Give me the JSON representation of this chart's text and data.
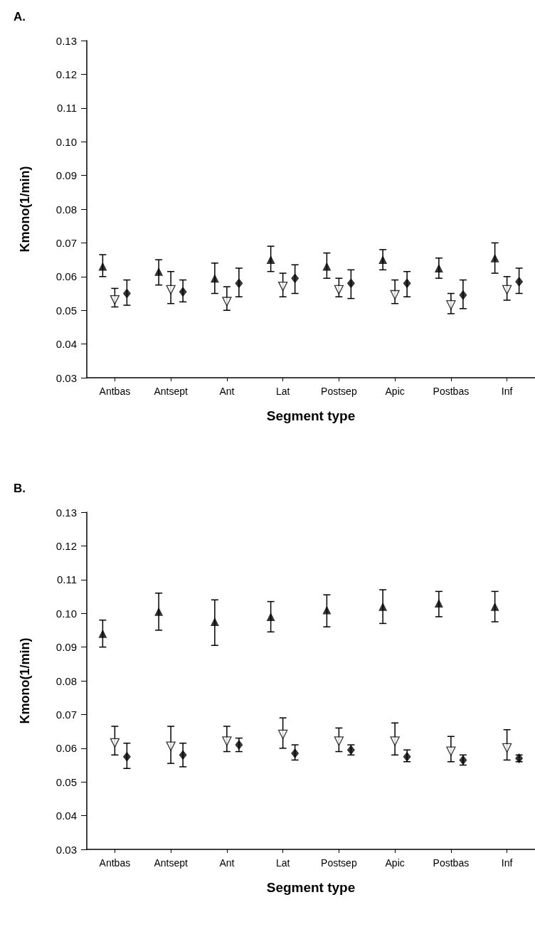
{
  "chart_data": [
    {
      "type": "scatter",
      "title": "A.",
      "xlabel": "Segment type",
      "ylabel": "Kmono(1/min)",
      "categories": [
        "Antbas",
        "Antsept",
        "Ant",
        "Lat",
        "Postsep",
        "Apic",
        "Postbas",
        "Inf"
      ],
      "ylim": [
        0.03,
        0.13
      ],
      "yticks": [
        0.03,
        0.04,
        0.05,
        0.06,
        0.07,
        0.08,
        0.09,
        {
          "value": 0.1,
          "label": "0.10"
        },
        0.11,
        0.12,
        0.13
      ],
      "grid": false,
      "series": [
        {
          "color": "#000000",
          "marker": "triangle",
          "values": [
            0.063,
            0.0615,
            0.0595,
            0.065,
            0.063,
            0.065,
            0.0625,
            0.0655
          ],
          "errors": [
            [
              0.06,
              0.0665
            ],
            [
              0.0575,
              0.065
            ],
            [
              0.055,
              0.064
            ],
            [
              0.0615,
              0.069
            ],
            [
              0.0595,
              0.067
            ],
            [
              0.062,
              0.068
            ],
            [
              0.0595,
              0.0655
            ],
            [
              0.061,
              0.07
            ]
          ]
        },
        {
          "color": "#000000",
          "marker": "triangle-down-open",
          "values": [
            0.0535,
            0.0565,
            0.053,
            0.0575,
            0.0565,
            0.055,
            0.052,
            0.0565
          ],
          "errors": [
            [
              0.051,
              0.0565
            ],
            [
              0.052,
              0.0615
            ],
            [
              0.05,
              0.057
            ],
            [
              0.054,
              0.061
            ],
            [
              0.054,
              0.0595
            ],
            [
              0.052,
              0.059
            ],
            [
              0.049,
              0.055
            ],
            [
              0.053,
              0.06
            ]
          ]
        },
        {
          "color": "#000000",
          "marker": "diamond",
          "values": [
            0.055,
            0.0555,
            0.058,
            0.0595,
            0.058,
            0.058,
            0.0545,
            0.0585
          ],
          "errors": [
            [
              0.0515,
              0.059
            ],
            [
              0.0525,
              0.059
            ],
            [
              0.054,
              0.0625
            ],
            [
              0.055,
              0.0635
            ],
            [
              0.0535,
              0.062
            ],
            [
              0.054,
              0.0615
            ],
            [
              0.0505,
              0.059
            ],
            [
              0.055,
              0.0625
            ]
          ]
        }
      ]
    },
    {
      "type": "scatter",
      "title": "B.",
      "xlabel": "Segment type",
      "ylabel": "Kmono(1/min)",
      "categories": [
        "Antbas",
        "Antsept",
        "Ant",
        "Lat",
        "Postsep",
        "Apic",
        "Postbas",
        "Inf"
      ],
      "ylim": [
        0.03,
        0.13
      ],
      "yticks": [
        0.03,
        0.04,
        0.05,
        0.06,
        0.07,
        0.08,
        0.09,
        {
          "value": 0.1,
          "label": "0.10"
        },
        0.11,
        0.12,
        0.13
      ],
      "grid": false,
      "series": [
        {
          "color": "#000000",
          "marker": "triangle",
          "values": [
            0.094,
            0.1005,
            0.0975,
            0.099,
            0.101,
            0.102,
            0.103,
            0.102
          ],
          "errors": [
            [
              0.09,
              0.098
            ],
            [
              0.095,
              0.106
            ],
            [
              0.0905,
              0.104
            ],
            [
              0.0945,
              0.1035
            ],
            [
              0.096,
              0.1055
            ],
            [
              0.097,
              0.107
            ],
            [
              0.099,
              0.1065
            ],
            [
              0.0975,
              0.1065
            ]
          ]
        },
        {
          "color": "#000000",
          "marker": "triangle-down-open",
          "values": [
            0.062,
            0.061,
            0.0625,
            0.0645,
            0.0625,
            0.0625,
            0.0595,
            0.0605
          ],
          "errors": [
            [
              0.058,
              0.0665
            ],
            [
              0.0555,
              0.0665
            ],
            [
              0.059,
              0.0665
            ],
            [
              0.06,
              0.069
            ],
            [
              0.059,
              0.066
            ],
            [
              0.058,
              0.0675
            ],
            [
              0.056,
              0.0635
            ],
            [
              0.0565,
              0.0655
            ]
          ]
        },
        {
          "color": "#000000",
          "marker": "diamond",
          "values": [
            0.0575,
            0.058,
            0.061,
            0.0585,
            0.0595,
            0.0575,
            0.0565,
            0.057
          ],
          "errors": [
            [
              0.054,
              0.0615
            ],
            [
              0.0545,
              0.0615
            ],
            [
              0.059,
              0.063
            ],
            [
              0.0565,
              0.061
            ],
            [
              0.058,
              0.061
            ],
            [
              0.056,
              0.0595
            ],
            [
              0.055,
              0.058
            ],
            [
              0.056,
              0.058
            ]
          ]
        }
      ]
    }
  ]
}
